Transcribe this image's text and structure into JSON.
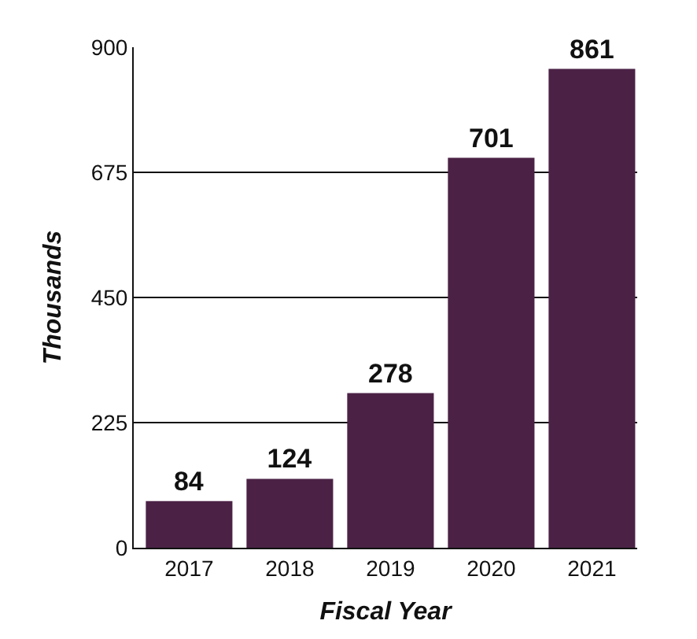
{
  "chart_data": {
    "type": "bar",
    "xlabel": "Fiscal Year",
    "ylabel": "Thousands",
    "categories": [
      "2017",
      "2018",
      "2019",
      "2020",
      "2021"
    ],
    "values": [
      84,
      124,
      278,
      701,
      861
    ],
    "color": "#4b2246",
    "ylim": [
      0,
      900
    ],
    "yticks": [
      0,
      225,
      450,
      675,
      900
    ],
    "grid": "y",
    "data_labels": true
  }
}
